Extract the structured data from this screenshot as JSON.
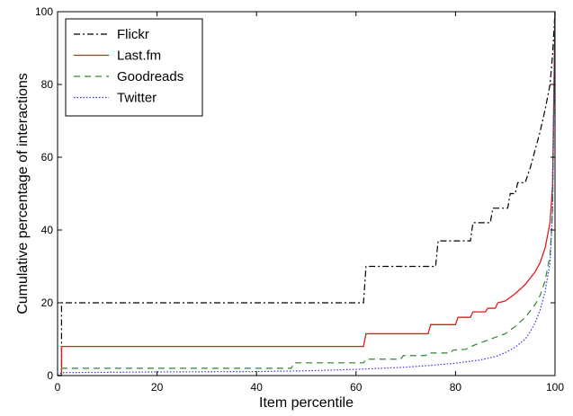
{
  "chart_data": {
    "type": "line",
    "title": "",
    "xlabel": "Item percentile",
    "ylabel": "Cumulative percentage of interactions",
    "xlim": [
      0,
      100
    ],
    "ylim": [
      0,
      100
    ],
    "xticks": [
      0,
      20,
      40,
      60,
      80,
      100
    ],
    "yticks": [
      0,
      20,
      40,
      60,
      80,
      100
    ],
    "xtick_labels": [
      "0",
      "20",
      "40",
      "60",
      "80",
      "100"
    ],
    "ytick_labels": [
      "0",
      "20",
      "40",
      "60",
      "80",
      "100"
    ],
    "grid": false,
    "legend_position": "top-left",
    "series": [
      {
        "name": "Flickr",
        "color": "#000000",
        "style": "dash-dot",
        "step": true,
        "points": [
          [
            0,
            0
          ],
          [
            0.8,
            0
          ],
          [
            0.8,
            20
          ],
          [
            61.5,
            20
          ],
          [
            62,
            30
          ],
          [
            76,
            30
          ],
          [
            76.5,
            37
          ],
          [
            83,
            37
          ],
          [
            83.5,
            42
          ],
          [
            87,
            42
          ],
          [
            87.5,
            46
          ],
          [
            90.5,
            46
          ],
          [
            91,
            50
          ],
          [
            92,
            50
          ],
          [
            92.5,
            53
          ],
          [
            94,
            53
          ],
          [
            95,
            57
          ],
          [
            96,
            62
          ],
          [
            97,
            67
          ],
          [
            98,
            73
          ],
          [
            99,
            80
          ],
          [
            99.5,
            88
          ],
          [
            100,
            100
          ]
        ]
      },
      {
        "name": "Last.fm",
        "color": "#e41a1a",
        "style": "solid",
        "step": true,
        "points": [
          [
            0,
            0
          ],
          [
            0.8,
            0
          ],
          [
            0.8,
            8
          ],
          [
            61.5,
            8
          ],
          [
            62,
            11.5
          ],
          [
            74.5,
            11.5
          ],
          [
            75,
            14
          ],
          [
            80,
            14
          ],
          [
            80.5,
            16
          ],
          [
            83,
            16
          ],
          [
            83.5,
            17.5
          ],
          [
            86,
            17.5
          ],
          [
            86.5,
            18.5
          ],
          [
            88,
            18.5
          ],
          [
            88.5,
            20
          ],
          [
            90,
            20.5
          ],
          [
            92,
            22.5
          ],
          [
            94,
            25
          ],
          [
            96,
            28.5
          ],
          [
            97,
            31
          ],
          [
            98,
            35
          ],
          [
            99,
            42
          ],
          [
            99.5,
            52
          ],
          [
            100,
            100
          ]
        ]
      },
      {
        "name": "Goodreads",
        "color": "#2a8a2a",
        "style": "dashed",
        "step": true,
        "points": [
          [
            0,
            0
          ],
          [
            0.8,
            0
          ],
          [
            0.8,
            2
          ],
          [
            47,
            2
          ],
          [
            47.5,
            3.5
          ],
          [
            61.5,
            3.5
          ],
          [
            62,
            4.5
          ],
          [
            69,
            4.5
          ],
          [
            69.5,
            5.5
          ],
          [
            74,
            5.5
          ],
          [
            74.5,
            6.2
          ],
          [
            79,
            6.2
          ],
          [
            79.5,
            7
          ],
          [
            82,
            7.2
          ],
          [
            84,
            8.5
          ],
          [
            86,
            9.5
          ],
          [
            88,
            10.5
          ],
          [
            90,
            11.5
          ],
          [
            92,
            13.5
          ],
          [
            94,
            16
          ],
          [
            96,
            19.5
          ],
          [
            97,
            22
          ],
          [
            98,
            26
          ],
          [
            99,
            33
          ],
          [
            99.5,
            45
          ],
          [
            100,
            100
          ]
        ]
      },
      {
        "name": "Twitter",
        "color": "#3333dd",
        "style": "dotted",
        "step": false,
        "points": [
          [
            0,
            0
          ],
          [
            0.8,
            0.8
          ],
          [
            20,
            1
          ],
          [
            40,
            1.1
          ],
          [
            50,
            1.3
          ],
          [
            60,
            1.7
          ],
          [
            70,
            2.3
          ],
          [
            75,
            2.8
          ],
          [
            80,
            3.4
          ],
          [
            85,
            4.3
          ],
          [
            88,
            5.2
          ],
          [
            90,
            6.3
          ],
          [
            92,
            7.8
          ],
          [
            94,
            10
          ],
          [
            95,
            12
          ],
          [
            96,
            14.5
          ],
          [
            97,
            18
          ],
          [
            98,
            23
          ],
          [
            99,
            31
          ],
          [
            99.5,
            45
          ],
          [
            100,
            100
          ]
        ]
      }
    ]
  }
}
